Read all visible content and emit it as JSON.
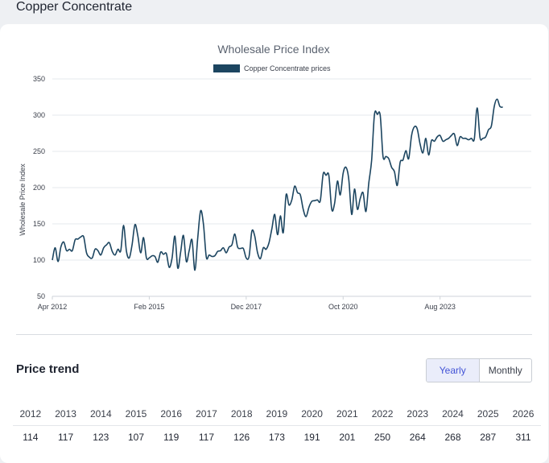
{
  "page_title": "Copper Concentrate",
  "chart_data": {
    "type": "line",
    "title": "Wholesale Price Index",
    "ylabel": "Wholesale Price Index",
    "xlabel": "",
    "ylim": [
      50,
      350
    ],
    "yticks": [
      50,
      100,
      150,
      200,
      250,
      300,
      350
    ],
    "xticks": [
      "Apr 2012",
      "Feb 2015",
      "Dec 2017",
      "Oct 2020",
      "Aug 2023"
    ],
    "x_start": "2012-04",
    "x_end": "2026-04",
    "grid": true,
    "legend": "top-center",
    "color": "#1c4560",
    "series": [
      {
        "name": "Copper Concentrate prices",
        "points": [
          [
            "2012-04",
            100
          ],
          [
            "2012-05",
            117
          ],
          [
            "2012-06",
            98
          ],
          [
            "2012-07",
            118
          ],
          [
            "2012-08",
            125
          ],
          [
            "2012-09",
            113
          ],
          [
            "2012-10",
            115
          ],
          [
            "2012-11",
            113
          ],
          [
            "2012-12",
            128
          ],
          [
            "2013-01",
            129
          ],
          [
            "2013-02",
            132
          ],
          [
            "2013-03",
            132
          ],
          [
            "2013-04",
            110
          ],
          [
            "2013-05",
            104
          ],
          [
            "2013-06",
            103
          ],
          [
            "2013-07",
            115
          ],
          [
            "2013-08",
            113
          ],
          [
            "2013-09",
            107
          ],
          [
            "2013-10",
            117
          ],
          [
            "2013-11",
            121
          ],
          [
            "2013-12",
            124
          ],
          [
            "2014-01",
            112
          ],
          [
            "2014-02",
            107
          ],
          [
            "2014-03",
            115
          ],
          [
            "2014-04",
            113
          ],
          [
            "2014-05",
            148
          ],
          [
            "2014-06",
            112
          ],
          [
            "2014-07",
            103
          ],
          [
            "2014-08",
            122
          ],
          [
            "2014-09",
            149
          ],
          [
            "2014-10",
            133
          ],
          [
            "2014-11",
            110
          ],
          [
            "2014-12",
            131
          ],
          [
            "2015-01",
            103
          ],
          [
            "2015-02",
            103
          ],
          [
            "2015-03",
            106
          ],
          [
            "2015-04",
            105
          ],
          [
            "2015-05",
            97
          ],
          [
            "2015-06",
            111
          ],
          [
            "2015-07",
            108
          ],
          [
            "2015-08",
            109
          ],
          [
            "2015-09",
            90
          ],
          [
            "2015-10",
            103
          ],
          [
            "2015-11",
            133
          ],
          [
            "2015-12",
            89
          ],
          [
            "2016-01",
            111
          ],
          [
            "2016-02",
            134
          ],
          [
            "2016-03",
            98
          ],
          [
            "2016-04",
            113
          ],
          [
            "2016-05",
            128
          ],
          [
            "2016-06",
            86
          ],
          [
            "2016-07",
            130
          ],
          [
            "2016-08",
            168
          ],
          [
            "2016-09",
            150
          ],
          [
            "2016-10",
            104
          ],
          [
            "2016-11",
            107
          ],
          [
            "2016-12",
            105
          ],
          [
            "2017-01",
            106
          ],
          [
            "2017-02",
            112
          ],
          [
            "2017-03",
            113
          ],
          [
            "2017-04",
            117
          ],
          [
            "2017-05",
            110
          ],
          [
            "2017-06",
            118
          ],
          [
            "2017-07",
            121
          ],
          [
            "2017-08",
            136
          ],
          [
            "2017-09",
            118
          ],
          [
            "2017-10",
            116
          ],
          [
            "2017-11",
            116
          ],
          [
            "2017-12",
            103
          ],
          [
            "2018-01",
            105
          ],
          [
            "2018-02",
            140
          ],
          [
            "2018-03",
            133
          ],
          [
            "2018-04",
            110
          ],
          [
            "2018-05",
            102
          ],
          [
            "2018-06",
            117
          ],
          [
            "2018-07",
            115
          ],
          [
            "2018-08",
            124
          ],
          [
            "2018-09",
            143
          ],
          [
            "2018-10",
            163
          ],
          [
            "2018-11",
            135
          ],
          [
            "2018-12",
            161
          ],
          [
            "2019-01",
            138
          ],
          [
            "2019-02",
            190
          ],
          [
            "2019-03",
            176
          ],
          [
            "2019-04",
            183
          ],
          [
            "2019-05",
            202
          ],
          [
            "2019-06",
            193
          ],
          [
            "2019-07",
            190
          ],
          [
            "2019-08",
            170
          ],
          [
            "2019-09",
            160
          ],
          [
            "2019-10",
            173
          ],
          [
            "2019-11",
            181
          ],
          [
            "2019-12",
            182
          ],
          [
            "2020-01",
            183
          ],
          [
            "2020-02",
            182
          ],
          [
            "2020-03",
            219
          ],
          [
            "2020-04",
            217
          ],
          [
            "2020-05",
            217
          ],
          [
            "2020-06",
            170
          ],
          [
            "2020-07",
            178
          ],
          [
            "2020-08",
            209
          ],
          [
            "2020-09",
            190
          ],
          [
            "2020-10",
            220
          ],
          [
            "2020-11",
            228
          ],
          [
            "2020-12",
            211
          ],
          [
            "2021-01",
            163
          ],
          [
            "2021-02",
            198
          ],
          [
            "2021-03",
            170
          ],
          [
            "2021-04",
            185
          ],
          [
            "2021-05",
            193
          ],
          [
            "2021-06",
            167
          ],
          [
            "2021-07",
            206
          ],
          [
            "2021-08",
            238
          ],
          [
            "2021-09",
            301
          ],
          [
            "2021-10",
            301
          ],
          [
            "2021-11",
            300
          ],
          [
            "2021-12",
            243
          ],
          [
            "2022-01",
            243
          ],
          [
            "2022-02",
            240
          ],
          [
            "2022-03",
            228
          ],
          [
            "2022-04",
            222
          ],
          [
            "2022-05",
            203
          ],
          [
            "2022-06",
            235
          ],
          [
            "2022-07",
            238
          ],
          [
            "2022-08",
            251
          ],
          [
            "2022-09",
            240
          ],
          [
            "2022-10",
            272
          ],
          [
            "2022-11",
            284
          ],
          [
            "2022-12",
            281
          ],
          [
            "2023-01",
            260
          ],
          [
            "2023-02",
            248
          ],
          [
            "2023-03",
            268
          ],
          [
            "2023-04",
            245
          ],
          [
            "2023-05",
            265
          ],
          [
            "2023-06",
            264
          ],
          [
            "2023-07",
            270
          ],
          [
            "2023-08",
            272
          ],
          [
            "2023-09",
            264
          ],
          [
            "2023-10",
            266
          ],
          [
            "2023-11",
            268
          ],
          [
            "2023-12",
            272
          ],
          [
            "2024-01",
            274
          ],
          [
            "2024-02",
            258
          ],
          [
            "2024-03",
            270
          ],
          [
            "2024-04",
            268
          ],
          [
            "2024-05",
            268
          ],
          [
            "2024-06",
            266
          ],
          [
            "2024-07",
            268
          ],
          [
            "2024-08",
            267
          ],
          [
            "2024-09",
            310
          ],
          [
            "2024-10",
            269
          ],
          [
            "2024-11",
            268
          ],
          [
            "2024-12",
            270
          ],
          [
            "2025-01",
            280
          ],
          [
            "2025-02",
            285
          ],
          [
            "2025-03",
            312
          ],
          [
            "2025-04",
            322
          ],
          [
            "2025-05",
            312
          ],
          [
            "2025-06",
            311
          ]
        ]
      }
    ]
  },
  "price_trend": {
    "title": "Price trend",
    "toggle": {
      "yearly": "Yearly",
      "monthly": "Monthly",
      "active": "yearly"
    },
    "years": [
      "2012",
      "2013",
      "2014",
      "2015",
      "2016",
      "2017",
      "2018",
      "2019",
      "2020",
      "2021",
      "2022",
      "2023",
      "2024",
      "2025",
      "2026"
    ],
    "values": [
      "114",
      "117",
      "123",
      "107",
      "119",
      "117",
      "126",
      "173",
      "191",
      "201",
      "250",
      "264",
      "268",
      "287",
      "311"
    ]
  }
}
